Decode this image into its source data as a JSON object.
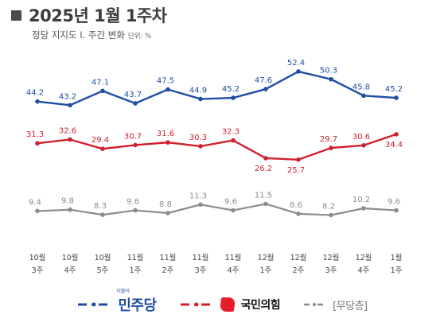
{
  "header": {
    "title": "2025년 1월 1주차",
    "subtitle": "정당 지지도 Ⅰ. 주간 변화",
    "unit": "단위: %"
  },
  "legend": {
    "minju_small": "더불어",
    "minju": "민주당",
    "ppp": "국민의힘",
    "none": "[무당층]"
  },
  "colors": {
    "minju": "#1f4ea3",
    "ppp": "#d0202e",
    "none": "#8c8c8c"
  },
  "chart_data": {
    "type": "line",
    "title": "정당 지지도 Ⅰ. 주간 변화",
    "categories": [
      "10월 3주",
      "10월 4주",
      "10월 5주",
      "11월 1주",
      "11월 2주",
      "11월 3주",
      "11월 4주",
      "12월 1주",
      "12월 2주",
      "12월 3주",
      "12월 4주",
      "1월 1주"
    ],
    "category_lines": [
      [
        "10월",
        "3주"
      ],
      [
        "10월",
        "4주"
      ],
      [
        "10월",
        "5주"
      ],
      [
        "11월",
        "1주"
      ],
      [
        "11월",
        "2주"
      ],
      [
        "11월",
        "3주"
      ],
      [
        "11월",
        "4주"
      ],
      [
        "12월",
        "1주"
      ],
      [
        "12월",
        "2주"
      ],
      [
        "12월",
        "3주"
      ],
      [
        "12월",
        "4주"
      ],
      [
        "1월",
        "1주"
      ]
    ],
    "series": [
      {
        "name": "민주당",
        "color": "#1f4ea3",
        "values": [
          44.2,
          43.2,
          47.1,
          43.7,
          47.5,
          44.9,
          45.2,
          47.6,
          52.4,
          50.3,
          45.8,
          45.2
        ]
      },
      {
        "name": "국민의힘",
        "color": "#d0202e",
        "values": [
          31.3,
          32.6,
          29.4,
          30.7,
          31.6,
          30.3,
          32.3,
          26.2,
          25.7,
          29.7,
          30.6,
          34.4
        ]
      },
      {
        "name": "무당층",
        "color": "#8c8c8c",
        "values": [
          9.4,
          9.8,
          8.3,
          9.6,
          8.8,
          11.3,
          9.6,
          11.5,
          8.6,
          8.2,
          10.2,
          9.6
        ]
      }
    ],
    "grid": false,
    "legend_position": "bottom"
  }
}
